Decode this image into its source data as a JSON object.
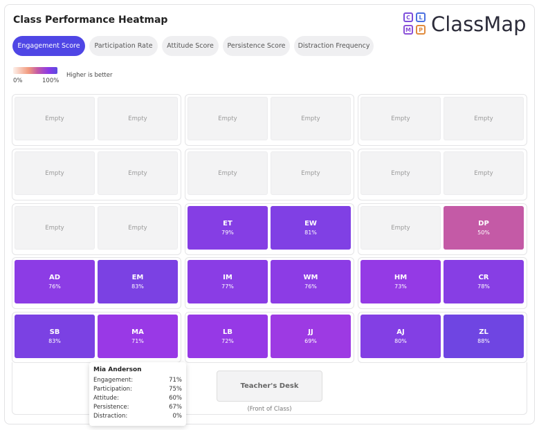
{
  "header": {
    "title": "Class Performance Heatmap",
    "logo_letters": [
      "C",
      "L",
      "M",
      "P"
    ],
    "logo_text": "ClassMap"
  },
  "tabs": [
    {
      "label": "Engagement Score",
      "active": true
    },
    {
      "label": "Participation Rate",
      "active": false
    },
    {
      "label": "Attitude Score",
      "active": false
    },
    {
      "label": "Persistence Score",
      "active": false
    },
    {
      "label": "Distraction Frequency",
      "active": false
    }
  ],
  "legend": {
    "min": "0%",
    "max": "100%",
    "note": "Higher is better"
  },
  "rows": [
    [
      [
        {
          "label": "Empty"
        },
        {
          "label": "Empty"
        }
      ],
      [
        {
          "label": "Empty"
        },
        {
          "label": "Empty"
        }
      ],
      [
        {
          "label": "Empty"
        },
        {
          "label": "Empty"
        }
      ]
    ],
    [
      [
        {
          "label": "Empty"
        },
        {
          "label": "Empty"
        }
      ],
      [
        {
          "label": "Empty"
        },
        {
          "label": "Empty"
        }
      ],
      [
        {
          "label": "Empty"
        },
        {
          "label": "Empty"
        }
      ]
    ],
    [
      [
        {
          "label": "Empty"
        },
        {
          "label": "Empty"
        }
      ],
      [
        {
          "initials": "ET",
          "score": "79%"
        },
        {
          "initials": "EW",
          "score": "81%"
        }
      ],
      [
        {
          "label": "Empty"
        },
        {
          "initials": "DP",
          "score": "50%"
        }
      ]
    ],
    [
      [
        {
          "initials": "AD",
          "score": "76%"
        },
        {
          "initials": "EM",
          "score": "83%"
        }
      ],
      [
        {
          "initials": "IM",
          "score": "77%"
        },
        {
          "initials": "WM",
          "score": "76%"
        }
      ],
      [
        {
          "initials": "HM",
          "score": "73%"
        },
        {
          "initials": "CR",
          "score": "78%"
        }
      ]
    ],
    [
      [
        {
          "initials": "SB",
          "score": "83%"
        },
        {
          "initials": "MA",
          "score": "71%"
        }
      ],
      [
        {
          "initials": "LB",
          "score": "72%"
        },
        {
          "initials": "JJ",
          "score": "69%"
        }
      ],
      [
        {
          "initials": "AJ",
          "score": "80%"
        },
        {
          "initials": "ZL",
          "score": "88%"
        }
      ]
    ]
  ],
  "desk": {
    "label": "Teacher's Desk",
    "note": "(Front of Class)"
  },
  "tooltip": {
    "name": "Mia Anderson",
    "rows": [
      [
        "Engagement:",
        "71%"
      ],
      [
        "Participation:",
        "75%"
      ],
      [
        "Attitude:",
        "60%"
      ],
      [
        "Persistence:",
        "67%"
      ],
      [
        "Distraction:",
        "0%"
      ]
    ]
  }
}
